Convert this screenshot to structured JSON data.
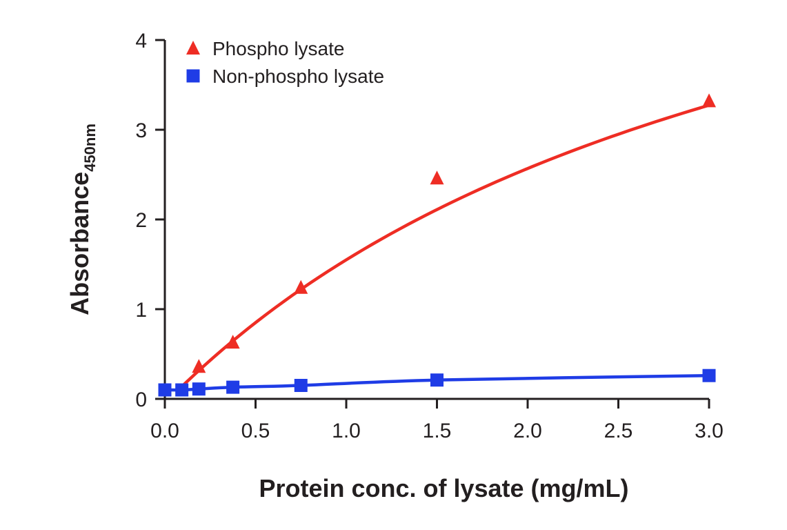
{
  "chart_data": {
    "type": "scatter",
    "xlabel": "Protein conc. of lysate (mg/mL)",
    "ylabel": "Absorbance",
    "ylabel_subscript": "450nm",
    "xlim": [
      0,
      3.0
    ],
    "ylim": [
      0,
      4
    ],
    "xticks": [
      "0.0",
      "0.5",
      "1.0",
      "1.5",
      "2.0",
      "2.5",
      "3.0"
    ],
    "yticks": [
      "0",
      "1",
      "2",
      "3",
      "4"
    ],
    "grid": false,
    "legend_position": "top-left",
    "series": [
      {
        "name": "Phospho lysate",
        "marker": "triangle",
        "color": "#ee2d24",
        "x": [
          0.1875,
          0.375,
          0.75,
          1.5,
          3.0
        ],
        "y": [
          0.36,
          0.63,
          1.24,
          2.46,
          3.32
        ],
        "fit_curve": true
      },
      {
        "name": "Non-phospho lysate",
        "marker": "square",
        "color": "#1f3ce6",
        "x": [
          0.0,
          0.09375,
          0.1875,
          0.375,
          0.75,
          1.5,
          3.0
        ],
        "y": [
          0.1,
          0.1,
          0.11,
          0.13,
          0.15,
          0.21,
          0.26
        ],
        "fit_curve": true
      }
    ]
  }
}
